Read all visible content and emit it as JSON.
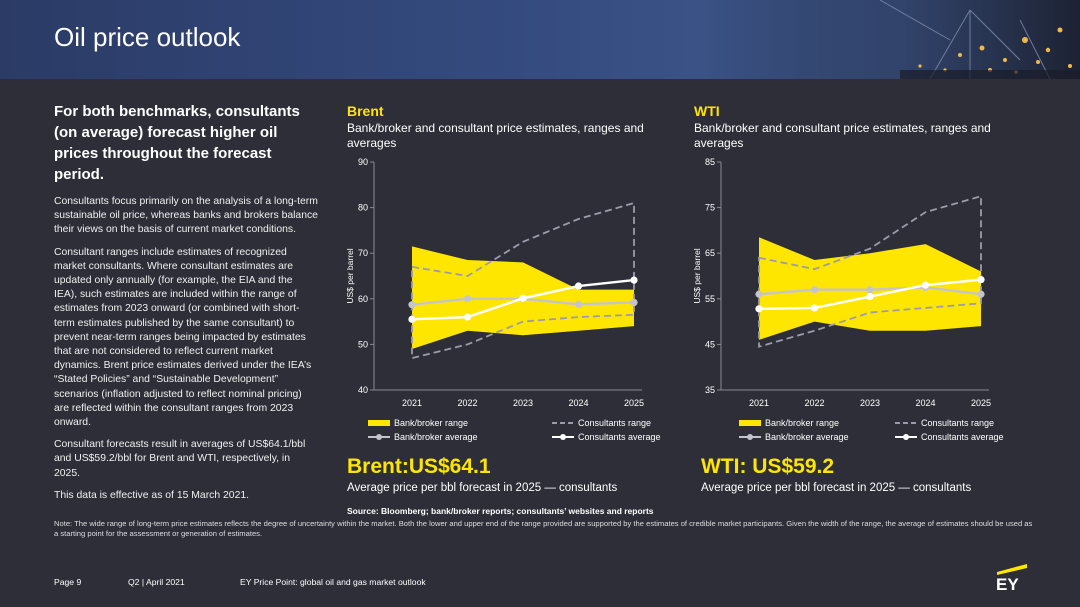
{
  "header": {
    "title": "Oil price outlook"
  },
  "left": {
    "lead": "For both benchmarks, consultants (on average) forecast higher oil prices throughout the forecast period.",
    "paragraphs": [
      "Consultants focus primarily on the analysis of a long-term sustainable oil price, whereas banks and brokers balance their views on the basis of current market conditions.",
      "Consultant ranges include estimates of recognized market consultants. Where consultant estimates are updated only annually (for example, the EIA and the IEA), such estimates are included within the range of estimates from 2023 onward (or combined with short-term estimates published by the same consultant) to prevent near-term ranges being impacted by estimates that are not considered to reflect current market dynamics. Brent price estimates derived under the IEA’s “Stated Policies” and “Sustainable Development” scenarios (inflation adjusted to reflect nominal pricing) are reflected within the consultant ranges from 2023 onward.",
      "Consultant forecasts result in averages of US$64.1/bbl and US$59.2/bbl for Brent and WTI, respectively, in 2025.",
      "This data is effective as of 15 March 2021."
    ]
  },
  "legend": {
    "bank_range": "Bank/broker range",
    "consultants_range": "Consultants range",
    "bank_average": "Bank/broker average",
    "consultants_average": "Consultants average"
  },
  "colors": {
    "range_fill": "#ffe600",
    "bank_avg": "#c4c4cd",
    "cons_avg": "#ffffff",
    "cons_range": "#9b9bab",
    "accent": "#ffe600"
  },
  "chart_data": [
    {
      "type": "area",
      "heading": "Brent",
      "subtitle": "Bank/broker and consultant price estimates, ranges and averages",
      "ylabel": "US$ per barrel",
      "categories": [
        "2021",
        "2022",
        "2023",
        "2024",
        "2025"
      ],
      "yticks": [
        40,
        50,
        60,
        70,
        80,
        90
      ],
      "ylim": [
        40,
        90
      ],
      "bank_range_low": [
        49,
        53,
        52,
        53,
        54
      ],
      "bank_range_high": [
        71.5,
        68.5,
        68,
        62,
        62
      ],
      "consultants_range_low": [
        47,
        50,
        55,
        56,
        56.5
      ],
      "consultants_range_high": [
        67,
        65,
        72.5,
        77.5,
        81
      ],
      "bank_average": [
        58.7,
        60,
        60,
        58.8,
        59.2
      ],
      "consultants_average": [
        55.5,
        56,
        60.1,
        62.8,
        64.1
      ],
      "headline": "Brent:US$64.1",
      "caption": "Average price per bbl forecast in 2025 — consultants"
    },
    {
      "type": "area",
      "heading": "WTI",
      "subtitle": "Bank/broker and consultant price estimates, ranges and averages",
      "ylabel": "US$ per barrel",
      "categories": [
        "2021",
        "2022",
        "2023",
        "2024",
        "2025"
      ],
      "yticks": [
        35,
        45,
        55,
        65,
        75,
        85
      ],
      "ylim": [
        35,
        85
      ],
      "bank_range_low": [
        46,
        50,
        48,
        48,
        49
      ],
      "bank_range_high": [
        68.5,
        63.5,
        65,
        67,
        61
      ],
      "consultants_range_low": [
        44.5,
        48,
        52,
        53,
        54
      ],
      "consultants_range_high": [
        64,
        61.5,
        66,
        74,
        77.5
      ],
      "bank_average": [
        56,
        57,
        57,
        57.5,
        56
      ],
      "consultants_average": [
        52.8,
        53,
        55.5,
        58,
        59.2
      ],
      "headline": "WTI: US$59.2",
      "caption": "Average price per bbl forecast in 2025 — consultants"
    }
  ],
  "source": "Source: Bloomberg; bank/broker reports; consultants’ websites and reports",
  "note": "Note: The wide range of long-term price estimates reflects the degree of uncertainty within the market. Both the lower and upper end of the range provided are supported by the estimates of credible market participants. Given the width of the range, the average of estimates should be used as a starting point for the assessment or generation of estimates.",
  "footer": {
    "page": "Page 9",
    "period": "Q2 | April 2021",
    "publication": "EY Price Point: global oil and gas market outlook"
  },
  "logo": {
    "text": "EY"
  }
}
